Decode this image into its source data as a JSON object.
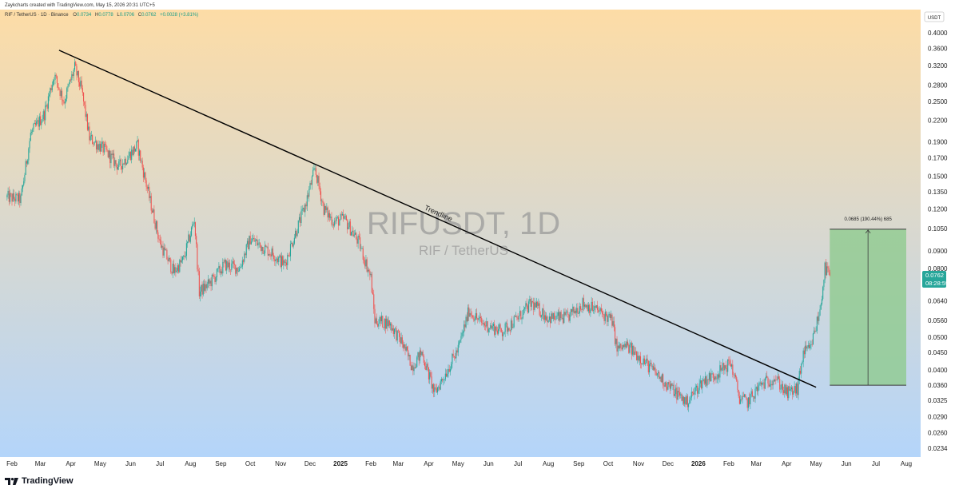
{
  "header": {
    "credit": "Zaykcharts created with TradingView.com, May 15, 2026 20:31 UTC+5",
    "symbol_line": "RIF / TetherUS · 1D · Binance",
    "ohlc": {
      "o_label": "O",
      "o": "0.0734",
      "h_label": "H",
      "h": "0.0778",
      "l_label": "L",
      "l": "0.0706",
      "c_label": "C",
      "c": "0.0762",
      "change": "+0.0028 (+3.81%)"
    }
  },
  "currency_badge": "USDT",
  "watermark": {
    "ticker": "RIFUSDT, 1D",
    "pair": "RIF / TetherUS"
  },
  "price_tag": {
    "value": "0.0762",
    "countdown": "08:28:59",
    "color": "#26a69a"
  },
  "brand": "TradingView",
  "colors": {
    "up": "#26a69a",
    "down": "#ef5350",
    "bg_top": "#fddca6",
    "bg_bottom": "#b4d5fa",
    "measure_fill": "#8ecb8e",
    "trendline": "#000000"
  },
  "chart_data": {
    "type": "candlestick",
    "scale": "log",
    "y_ticks": [
      "0.4000",
      "0.3600",
      "0.3200",
      "0.2800",
      "0.2500",
      "0.2200",
      "0.1900",
      "0.1700",
      "0.1500",
      "0.1350",
      "0.1200",
      "0.1050",
      "0.0900",
      "0.0800",
      "0.0640",
      "0.0560",
      "0.0500",
      "0.0450",
      "0.0400",
      "0.0360",
      "0.0325",
      "0.0290",
      "0.0260",
      "0.0234"
    ],
    "x_ticks": [
      {
        "label": "Feb",
        "date": "2024-02-01",
        "bold": false
      },
      {
        "label": "Mar",
        "date": "2024-03-01",
        "bold": false
      },
      {
        "label": "Apr",
        "date": "2024-04-01",
        "bold": false
      },
      {
        "label": "May",
        "date": "2024-05-01",
        "bold": false
      },
      {
        "label": "Jun",
        "date": "2024-06-01",
        "bold": false
      },
      {
        "label": "Jul",
        "date": "2024-07-01",
        "bold": false
      },
      {
        "label": "Aug",
        "date": "2024-08-01",
        "bold": false
      },
      {
        "label": "Sep",
        "date": "2024-09-01",
        "bold": false
      },
      {
        "label": "Oct",
        "date": "2024-10-01",
        "bold": false
      },
      {
        "label": "Nov",
        "date": "2024-11-01",
        "bold": false
      },
      {
        "label": "Dec",
        "date": "2024-12-01",
        "bold": false
      },
      {
        "label": "2025",
        "date": "2025-01-01",
        "bold": true
      },
      {
        "label": "Feb",
        "date": "2025-02-01",
        "bold": false
      },
      {
        "label": "Mar",
        "date": "2025-03-01",
        "bold": false
      },
      {
        "label": "Apr",
        "date": "2025-04-01",
        "bold": false
      },
      {
        "label": "May",
        "date": "2025-05-01",
        "bold": false
      },
      {
        "label": "Jun",
        "date": "2025-06-01",
        "bold": false
      },
      {
        "label": "Jul",
        "date": "2025-07-01",
        "bold": false
      },
      {
        "label": "Aug",
        "date": "2025-08-01",
        "bold": false
      },
      {
        "label": "Sep",
        "date": "2025-09-01",
        "bold": false
      },
      {
        "label": "Oct",
        "date": "2025-10-01",
        "bold": false
      },
      {
        "label": "Nov",
        "date": "2025-11-01",
        "bold": false
      },
      {
        "label": "Dec",
        "date": "2025-12-01",
        "bold": false
      },
      {
        "label": "2026",
        "date": "2026-01-01",
        "bold": true
      },
      {
        "label": "Feb",
        "date": "2026-02-01",
        "bold": false
      },
      {
        "label": "Mar",
        "date": "2026-03-01",
        "bold": false
      },
      {
        "label": "Apr",
        "date": "2026-04-01",
        "bold": false
      },
      {
        "label": "May",
        "date": "2026-05-01",
        "bold": false
      },
      {
        "label": "Jun",
        "date": "2026-06-01",
        "bold": false
      },
      {
        "label": "Jul",
        "date": "2026-07-01",
        "bold": false
      },
      {
        "label": "Aug",
        "date": "2026-08-01",
        "bold": false
      }
    ],
    "price_path": [
      {
        "date": "2024-01-27",
        "price": 0.13
      },
      {
        "date": "2024-02-10",
        "price": 0.128
      },
      {
        "date": "2024-02-20",
        "price": 0.2
      },
      {
        "date": "2024-03-05",
        "price": 0.23
      },
      {
        "date": "2024-03-15",
        "price": 0.3
      },
      {
        "date": "2024-03-25",
        "price": 0.25
      },
      {
        "date": "2024-04-05",
        "price": 0.315
      },
      {
        "date": "2024-04-12",
        "price": 0.27
      },
      {
        "date": "2024-04-20",
        "price": 0.195
      },
      {
        "date": "2024-05-05",
        "price": 0.18
      },
      {
        "date": "2024-05-20",
        "price": 0.16
      },
      {
        "date": "2024-06-08",
        "price": 0.185
      },
      {
        "date": "2024-06-20",
        "price": 0.13
      },
      {
        "date": "2024-07-01",
        "price": 0.095
      },
      {
        "date": "2024-07-15",
        "price": 0.078
      },
      {
        "date": "2024-07-25",
        "price": 0.085
      },
      {
        "date": "2024-08-05",
        "price": 0.112
      },
      {
        "date": "2024-08-10",
        "price": 0.068
      },
      {
        "date": "2024-08-20",
        "price": 0.072
      },
      {
        "date": "2024-09-05",
        "price": 0.082
      },
      {
        "date": "2024-09-20",
        "price": 0.08
      },
      {
        "date": "2024-10-01",
        "price": 0.098
      },
      {
        "date": "2024-10-15",
        "price": 0.092
      },
      {
        "date": "2024-10-25",
        "price": 0.088
      },
      {
        "date": "2024-11-05",
        "price": 0.082
      },
      {
        "date": "2024-11-15",
        "price": 0.1
      },
      {
        "date": "2024-11-25",
        "price": 0.12
      },
      {
        "date": "2024-12-06",
        "price": 0.158
      },
      {
        "date": "2024-12-15",
        "price": 0.12
      },
      {
        "date": "2024-12-25",
        "price": 0.11
      },
      {
        "date": "2025-01-05",
        "price": 0.112
      },
      {
        "date": "2025-01-20",
        "price": 0.095
      },
      {
        "date": "2025-02-01",
        "price": 0.075
      },
      {
        "date": "2025-02-05",
        "price": 0.056
      },
      {
        "date": "2025-02-20",
        "price": 0.055
      },
      {
        "date": "2025-03-05",
        "price": 0.048
      },
      {
        "date": "2025-03-15",
        "price": 0.041
      },
      {
        "date": "2025-03-25",
        "price": 0.045
      },
      {
        "date": "2025-04-07",
        "price": 0.034
      },
      {
        "date": "2025-04-20",
        "price": 0.04
      },
      {
        "date": "2025-05-01",
        "price": 0.046
      },
      {
        "date": "2025-05-12",
        "price": 0.06
      },
      {
        "date": "2025-05-25",
        "price": 0.055
      },
      {
        "date": "2025-06-15",
        "price": 0.052
      },
      {
        "date": "2025-07-01",
        "price": 0.057
      },
      {
        "date": "2025-07-15",
        "price": 0.063
      },
      {
        "date": "2025-08-01",
        "price": 0.057
      },
      {
        "date": "2025-08-20",
        "price": 0.057
      },
      {
        "date": "2025-09-05",
        "price": 0.063
      },
      {
        "date": "2025-09-20",
        "price": 0.06
      },
      {
        "date": "2025-10-05",
        "price": 0.056
      },
      {
        "date": "2025-10-10",
        "price": 0.046
      },
      {
        "date": "2025-10-20",
        "price": 0.047
      },
      {
        "date": "2025-11-01",
        "price": 0.044
      },
      {
        "date": "2025-11-15",
        "price": 0.04
      },
      {
        "date": "2025-12-01",
        "price": 0.036
      },
      {
        "date": "2025-12-20",
        "price": 0.032
      },
      {
        "date": "2026-01-05",
        "price": 0.037
      },
      {
        "date": "2026-01-20",
        "price": 0.039
      },
      {
        "date": "2026-02-03",
        "price": 0.042
      },
      {
        "date": "2026-02-12",
        "price": 0.033
      },
      {
        "date": "2026-02-20",
        "price": 0.032
      },
      {
        "date": "2026-03-05",
        "price": 0.036
      },
      {
        "date": "2026-03-20",
        "price": 0.038
      },
      {
        "date": "2026-04-01",
        "price": 0.034
      },
      {
        "date": "2026-04-12",
        "price": 0.035
      },
      {
        "date": "2026-04-18",
        "price": 0.045
      },
      {
        "date": "2026-04-25",
        "price": 0.046
      },
      {
        "date": "2026-05-05",
        "price": 0.06
      },
      {
        "date": "2026-05-10",
        "price": 0.08
      },
      {
        "date": "2026-05-15",
        "price": 0.0762
      }
    ],
    "trendline": {
      "label": "Trendline",
      "start": {
        "date": "2024-03-20",
        "price": 0.355
      },
      "end": {
        "date": "2026-05-01",
        "price": 0.0355
      }
    },
    "measure": {
      "label": "0.0685 (190.44%) 685",
      "from_date": "2026-05-15",
      "to_date": "2026-08-01",
      "low": 0.036,
      "high": 0.1045
    }
  }
}
